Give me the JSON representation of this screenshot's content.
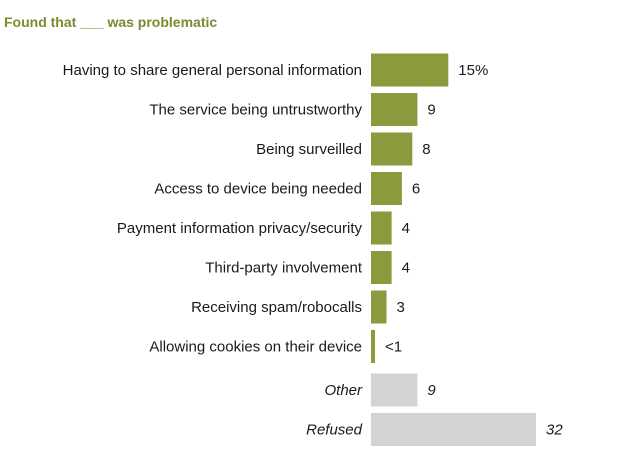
{
  "chart_data": {
    "type": "bar",
    "orientation": "horizontal",
    "title": "Found that ___ was problematic",
    "xlim": [
      0,
      32
    ],
    "colors": {
      "title": "#7d8a2e",
      "bar_primary": "#8a9a3c",
      "bar_other": "#d1d3d4",
      "text": "#1a1a1a"
    },
    "bars": [
      {
        "category": "Having to share general personal information",
        "value": 15,
        "label": "15%",
        "group": "primary"
      },
      {
        "category": "The service being untrustworthy",
        "value": 9,
        "label": "9",
        "group": "primary"
      },
      {
        "category": "Being surveilled",
        "value": 8,
        "label": "8",
        "group": "primary"
      },
      {
        "category": "Access to device being needed",
        "value": 6,
        "label": "6",
        "group": "primary"
      },
      {
        "category": "Payment information privacy/security",
        "value": 4,
        "label": "4",
        "group": "primary"
      },
      {
        "category": "Third-party involvement",
        "value": 4,
        "label": "4",
        "group": "primary"
      },
      {
        "category": "Receiving spam/robocalls",
        "value": 3,
        "label": "3",
        "group": "primary"
      },
      {
        "category": "Allowing cookies on their device",
        "value": 0.4,
        "label": "<1",
        "group": "primary"
      },
      {
        "category": "Other",
        "value": 9,
        "label": "9",
        "group": "other"
      },
      {
        "category": "Refused",
        "value": 32,
        "label": "32",
        "group": "other"
      }
    ]
  }
}
